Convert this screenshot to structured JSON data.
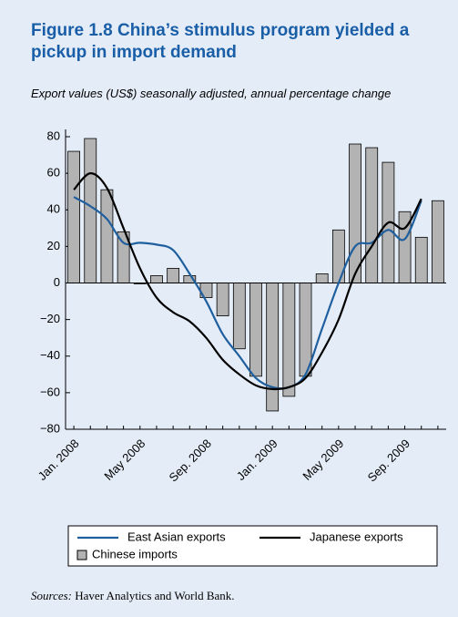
{
  "chart_data": {
    "type": "bar",
    "title": "Figure 1.8  China’s stimulus program yielded a pickup in import demand",
    "subtitle": "Export  values (US$) seasonally adjusted, annual percentage change",
    "source_label": "Sources:",
    "source": "Haver Analytics and World Bank.",
    "categories": [
      "Jan. 2008",
      null,
      null,
      null,
      "May 2008",
      null,
      null,
      null,
      "Sep. 2008",
      null,
      null,
      null,
      "Jan. 2009",
      null,
      null,
      null,
      "May 2009",
      null,
      null,
      null,
      "Sep. 2009",
      null,
      null
    ],
    "series": [
      {
        "name": "East Asian exports",
        "type": "line",
        "color": "#1f5f9e",
        "values": [
          47,
          42,
          35,
          22,
          22,
          21,
          18,
          5,
          -10,
          -28,
          -40,
          -52,
          -57,
          -57,
          -50,
          -25,
          0,
          20,
          22,
          29,
          24,
          45,
          null
        ]
      },
      {
        "name": "Japanese exports",
        "type": "line",
        "color": "#000000",
        "values": [
          51,
          60,
          52,
          30,
          8,
          -8,
          -16,
          -21,
          -30,
          -42,
          -50,
          -56,
          -58,
          -57,
          -52,
          -38,
          -20,
          5,
          20,
          33,
          30,
          46,
          null
        ]
      },
      {
        "name": "Chinese imports",
        "type": "bar",
        "color": "#b3b3b3",
        "values": [
          72,
          79,
          51,
          28,
          -0.5,
          4,
          8,
          4,
          -8,
          -18,
          -36,
          -51,
          -70,
          -62,
          -51,
          5,
          29,
          76,
          74,
          66,
          39,
          25,
          45
        ]
      }
    ],
    "ylim": [
      -80,
      80
    ],
    "yticks": [
      80,
      60,
      40,
      20,
      0,
      {
        "value": -20,
        "label": "−20"
      },
      {
        "value": -40,
        "label": "−40"
      },
      {
        "value": -60,
        "label": "−60"
      },
      {
        "value": -80,
        "label": "−80"
      }
    ]
  }
}
